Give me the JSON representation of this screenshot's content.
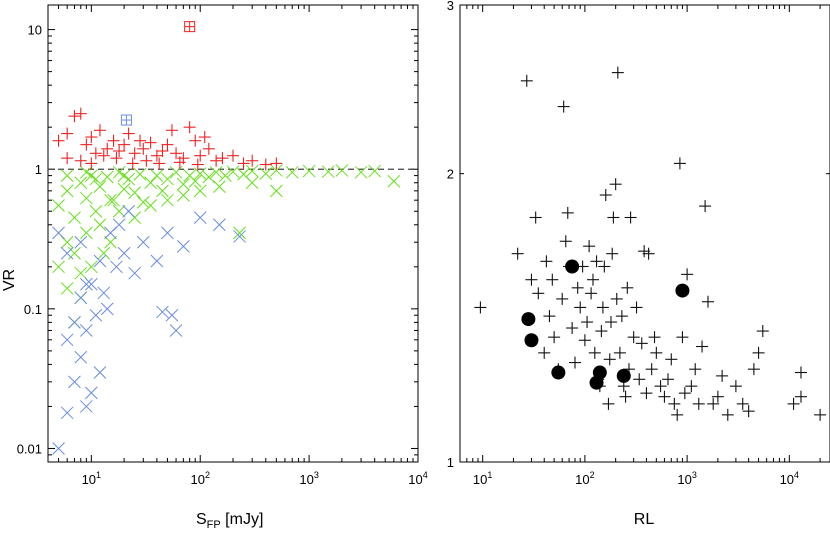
{
  "chart_data": [
    {
      "type": "scatter",
      "panel": "left",
      "xlabel": "S",
      "xlabel_sub": "FP",
      "xlabel_unit": " [mJy]",
      "ylabel": "VR",
      "xscale": "log",
      "yscale": "log",
      "xlim": [
        4,
        10000
      ],
      "ylim": [
        0.008,
        15
      ],
      "x_ticks": [
        {
          "value": 10,
          "base": "10",
          "exp": "1"
        },
        {
          "value": 100,
          "base": "10",
          "exp": "2"
        },
        {
          "value": 1000,
          "base": "10",
          "exp": "3"
        },
        {
          "value": 10000,
          "base": "10",
          "exp": "4"
        }
      ],
      "y_ticks": [
        {
          "value": 0.01,
          "label": "0.01"
        },
        {
          "value": 0.1,
          "label": "0.1"
        },
        {
          "value": 1,
          "label": "1"
        },
        {
          "value": 10,
          "label": "10"
        }
      ],
      "reference_line": {
        "y": 1,
        "style": "dashed"
      },
      "series": [
        {
          "name": "green-cross",
          "marker": "x",
          "color": "#66e01a",
          "points": [
            [
              5,
              0.55
            ],
            [
              6,
              0.7
            ],
            [
              7,
              0.45
            ],
            [
              8,
              0.8
            ],
            [
              9,
              0.62
            ],
            [
              10,
              0.9
            ],
            [
              11,
              0.5
            ],
            [
              12,
              0.75
            ],
            [
              14,
              0.88
            ],
            [
              16,
              0.6
            ],
            [
              18,
              0.95
            ],
            [
              20,
              0.72
            ],
            [
              22,
              0.85
            ],
            [
              25,
              0.68
            ],
            [
              28,
              0.92
            ],
            [
              30,
              0.58
            ],
            [
              35,
              0.8
            ],
            [
              40,
              0.9
            ],
            [
              45,
              0.7
            ],
            [
              50,
              0.85
            ],
            [
              60,
              0.95
            ],
            [
              70,
              0.78
            ],
            [
              80,
              0.9
            ],
            [
              90,
              0.82
            ],
            [
              100,
              0.93
            ],
            [
              120,
              0.88
            ],
            [
              140,
              0.95
            ],
            [
              170,
              0.9
            ],
            [
              200,
              0.96
            ],
            [
              250,
              0.92
            ],
            [
              300,
              0.97
            ],
            [
              400,
              0.93
            ],
            [
              500,
              0.98
            ],
            [
              700,
              0.95
            ],
            [
              1000,
              0.97
            ],
            [
              1500,
              0.96
            ],
            [
              2000,
              0.98
            ],
            [
              3000,
              0.95
            ],
            [
              4000,
              0.97
            ],
            [
              6000,
              0.82
            ],
            [
              6,
              0.3
            ],
            [
              7,
              0.25
            ],
            [
              9,
              0.35
            ],
            [
              12,
              0.4
            ],
            [
              15,
              0.3
            ],
            [
              5,
              0.2
            ],
            [
              8,
              0.18
            ],
            [
              6,
              0.14
            ],
            [
              10,
              0.2
            ],
            [
              13,
              0.25
            ],
            [
              18,
              0.5
            ],
            [
              25,
              0.45
            ],
            [
              35,
              0.55
            ],
            [
              50,
              0.6
            ],
            [
              70,
              0.65
            ],
            [
              100,
              0.7
            ],
            [
              150,
              0.75
            ],
            [
              230,
              0.35
            ],
            [
              300,
              0.8
            ],
            [
              500,
              0.7
            ],
            [
              7,
              0.08
            ],
            [
              8,
              0.12
            ],
            [
              15,
              0.6
            ],
            [
              20,
              0.9
            ],
            [
              9,
              0.95
            ],
            [
              11,
              0.85
            ],
            [
              6,
              0.9
            ]
          ]
        },
        {
          "name": "blue-cross",
          "marker": "x",
          "color": "#6b8de0",
          "points": [
            [
              5,
              0.01
            ],
            [
              6,
              0.018
            ],
            [
              7,
              0.03
            ],
            [
              8,
              0.045
            ],
            [
              9,
              0.02
            ],
            [
              10,
              0.025
            ],
            [
              12,
              0.035
            ],
            [
              6,
              0.06
            ],
            [
              7,
              0.08
            ],
            [
              9,
              0.07
            ],
            [
              11,
              0.09
            ],
            [
              14,
              0.1
            ],
            [
              8,
              0.12
            ],
            [
              10,
              0.15
            ],
            [
              13,
              0.13
            ],
            [
              17,
              0.2
            ],
            [
              20,
              0.25
            ],
            [
              25,
              0.18
            ],
            [
              30,
              0.3
            ],
            [
              40,
              0.22
            ],
            [
              50,
              0.35
            ],
            [
              60,
              0.07
            ],
            [
              70,
              0.28
            ],
            [
              55,
              0.09
            ],
            [
              45,
              0.095
            ],
            [
              100,
              0.45
            ],
            [
              150,
              0.4
            ],
            [
              230,
              0.33
            ],
            [
              6,
              0.25
            ],
            [
              8,
              0.3
            ],
            [
              12,
              0.22
            ],
            [
              15,
              0.35
            ],
            [
              18,
              0.4
            ],
            [
              22,
              0.5
            ],
            [
              5,
              0.35
            ],
            [
              9,
              0.15
            ]
          ]
        },
        {
          "name": "red-plus",
          "marker": "+",
          "color": "#ee2222",
          "points": [
            [
              5,
              1.6
            ],
            [
              6,
              1.8
            ],
            [
              7,
              2.4
            ],
            [
              8,
              2.5
            ],
            [
              9,
              1.5
            ],
            [
              10,
              1.7
            ],
            [
              11,
              1.3
            ],
            [
              12,
              1.9
            ],
            [
              14,
              1.4
            ],
            [
              16,
              1.6
            ],
            [
              18,
              1.35
            ],
            [
              20,
              1.5
            ],
            [
              22,
              1.8
            ],
            [
              25,
              1.3
            ],
            [
              28,
              1.6
            ],
            [
              30,
              1.4
            ],
            [
              35,
              1.55
            ],
            [
              40,
              1.25
            ],
            [
              45,
              1.35
            ],
            [
              50,
              1.5
            ],
            [
              55,
              1.9
            ],
            [
              60,
              1.3
            ],
            [
              70,
              1.2
            ],
            [
              80,
              2.0
            ],
            [
              90,
              1.6
            ],
            [
              100,
              1.25
            ],
            [
              110,
              1.7
            ],
            [
              120,
              1.4
            ],
            [
              140,
              1.15
            ],
            [
              160,
              1.2
            ],
            [
              200,
              1.25
            ],
            [
              250,
              1.1
            ],
            [
              300,
              1.15
            ],
            [
              400,
              1.08
            ],
            [
              500,
              1.1
            ],
            [
              6,
              1.2
            ],
            [
              8,
              1.15
            ],
            [
              10,
              1.1
            ],
            [
              13,
              1.25
            ],
            [
              17,
              1.2
            ],
            [
              24,
              1.1
            ],
            [
              32,
              1.15
            ],
            [
              42,
              1.1
            ],
            [
              65,
              1.12
            ],
            [
              95,
              1.08
            ]
          ]
        },
        {
          "name": "red-boxed-plus",
          "marker": "boxed-plus",
          "color": "#ee2222",
          "points": [
            [
              80,
              10.5
            ]
          ]
        },
        {
          "name": "blue-boxed-plus",
          "marker": "boxed-plus",
          "color": "#6b8de0",
          "points": [
            [
              21,
              2.25
            ]
          ]
        }
      ]
    },
    {
      "type": "scatter",
      "panel": "right",
      "xlabel": "RL",
      "ylabel": "",
      "xscale": "log",
      "yscale": "log",
      "xlim": [
        6,
        25000
      ],
      "ylim": [
        1,
        3
      ],
      "x_ticks": [
        {
          "value": 10,
          "base": "10",
          "exp": "1"
        },
        {
          "value": 100,
          "base": "10",
          "exp": "2"
        },
        {
          "value": 1000,
          "base": "10",
          "exp": "3"
        },
        {
          "value": 10000,
          "base": "10",
          "exp": "4"
        }
      ],
      "y_ticks": [
        {
          "value": 1,
          "label": "1"
        },
        {
          "value": 2,
          "label": "2"
        },
        {
          "value": 3,
          "label": "3"
        }
      ],
      "series": [
        {
          "name": "black-plus",
          "marker": "+",
          "color": "#111111",
          "points": [
            [
              9.5,
              1.45
            ],
            [
              22,
              1.65
            ],
            [
              27,
              2.5
            ],
            [
              30,
              1.55
            ],
            [
              33,
              1.8
            ],
            [
              35,
              1.5
            ],
            [
              40,
              1.3
            ],
            [
              42,
              1.62
            ],
            [
              45,
              1.42
            ],
            [
              48,
              1.55
            ],
            [
              50,
              1.35
            ],
            [
              55,
              1.25
            ],
            [
              60,
              1.48
            ],
            [
              62,
              2.35
            ],
            [
              65,
              1.7
            ],
            [
              68,
              1.82
            ],
            [
              70,
              1.6
            ],
            [
              75,
              1.38
            ],
            [
              80,
              1.27
            ],
            [
              85,
              1.52
            ],
            [
              90,
              1.45
            ],
            [
              95,
              1.6
            ],
            [
              100,
              1.34
            ],
            [
              105,
              1.4
            ],
            [
              110,
              1.68
            ],
            [
              115,
              1.5
            ],
            [
              120,
              1.55
            ],
            [
              125,
              1.3
            ],
            [
              130,
              1.62
            ],
            [
              135,
              1.22
            ],
            [
              140,
              1.2
            ],
            [
              145,
              1.37
            ],
            [
              150,
              1.45
            ],
            [
              155,
              1.6
            ],
            [
              160,
              1.9
            ],
            [
              170,
              1.15
            ],
            [
              175,
              1.28
            ],
            [
              180,
              1.4
            ],
            [
              185,
              1.65
            ],
            [
              190,
              1.8
            ],
            [
              200,
              1.95
            ],
            [
              205,
              1.48
            ],
            [
              210,
              2.55
            ],
            [
              220,
              1.3
            ],
            [
              230,
              1.42
            ],
            [
              240,
              1.2
            ],
            [
              250,
              1.17
            ],
            [
              260,
              1.52
            ],
            [
              270,
              1.25
            ],
            [
              280,
              1.8
            ],
            [
              300,
              1.35
            ],
            [
              320,
              1.45
            ],
            [
              340,
              1.22
            ],
            [
              360,
              1.33
            ],
            [
              380,
              1.66
            ],
            [
              400,
              1.18
            ],
            [
              420,
              1.65
            ],
            [
              450,
              1.25
            ],
            [
              480,
              1.35
            ],
            [
              500,
              1.3
            ],
            [
              550,
              1.2
            ],
            [
              600,
              1.17
            ],
            [
              650,
              1.22
            ],
            [
              700,
              1.28
            ],
            [
              750,
              1.15
            ],
            [
              800,
              1.12
            ],
            [
              850,
              2.05
            ],
            [
              900,
              1.35
            ],
            [
              950,
              1.18
            ],
            [
              1000,
              1.57
            ],
            [
              1100,
              1.2
            ],
            [
              1200,
              1.25
            ],
            [
              1300,
              1.15
            ],
            [
              1400,
              1.32
            ],
            [
              1500,
              1.85
            ],
            [
              1600,
              1.47
            ],
            [
              1800,
              1.15
            ],
            [
              2000,
              1.17
            ],
            [
              2200,
              1.23
            ],
            [
              2500,
              1.12
            ],
            [
              3000,
              1.2
            ],
            [
              3500,
              1.15
            ],
            [
              4000,
              1.13
            ],
            [
              4500,
              1.25
            ],
            [
              5000,
              1.3
            ],
            [
              5500,
              1.37
            ],
            [
              13000,
              1.17
            ],
            [
              20000,
              1.12
            ],
            [
              13000,
              1.24
            ],
            [
              11000,
              1.15
            ]
          ]
        },
        {
          "name": "black-dot",
          "marker": "filled-circle",
          "color": "#000000",
          "points": [
            [
              28,
              1.41
            ],
            [
              30,
              1.34
            ],
            [
              55,
              1.24
            ],
            [
              75,
              1.6
            ],
            [
              130,
              1.21
            ],
            [
              140,
              1.24
            ],
            [
              240,
              1.23
            ],
            [
              900,
              1.51
            ]
          ]
        }
      ]
    }
  ]
}
